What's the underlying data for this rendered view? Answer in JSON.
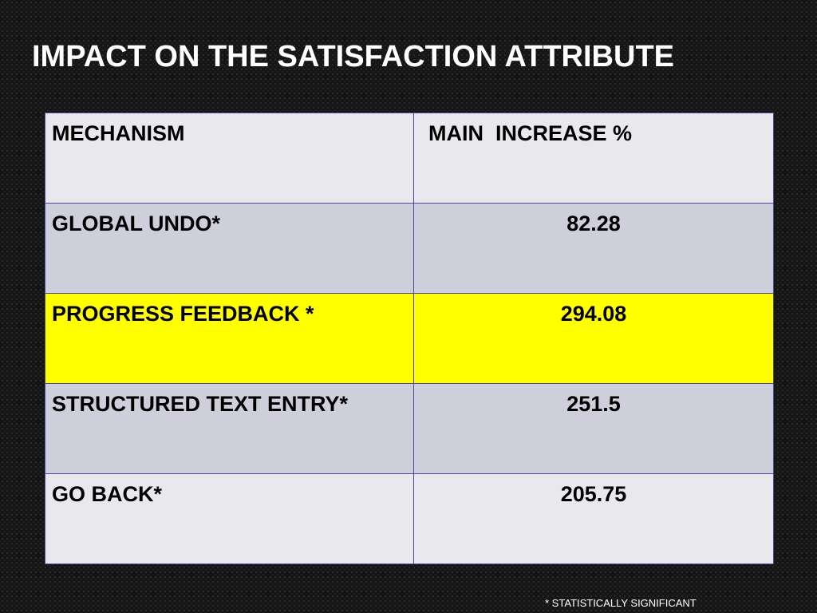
{
  "slide": {
    "title": "IMPACT ON THE SATISFACTION ATTRIBUTE",
    "footnote": "* STATISTICALLY SIGNIFICANT"
  },
  "table": {
    "headers": [
      "MECHANISM",
      "MAIN  INCREASE %"
    ],
    "rows": [
      {
        "mechanism": "GLOBAL UNDO*",
        "increase": "82.28",
        "highlighted": false
      },
      {
        "mechanism": "PROGRESS FEEDBACK *",
        "increase": "294.08",
        "highlighted": true
      },
      {
        "mechanism": "STRUCTURED TEXT ENTRY*",
        "increase": "251.5",
        "highlighted": false
      },
      {
        "mechanism": "GO BACK*",
        "increase": "205.75",
        "highlighted": false
      }
    ]
  },
  "colors": {
    "background": "#141414",
    "title_text": "#ffffff",
    "row_light": "#e8e8ed",
    "row_dark": "#cfcfdc",
    "row_highlight": "#ffff00",
    "cell_border": "#4b4aa0"
  }
}
